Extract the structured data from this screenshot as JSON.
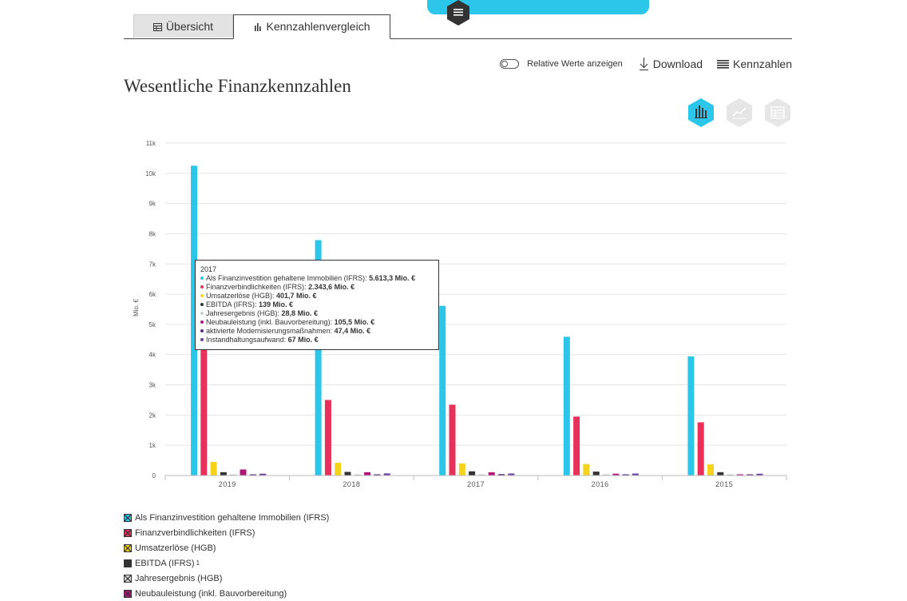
{
  "tabs": [
    {
      "label": "Übersicht",
      "icon": "table-icon"
    },
    {
      "label": "Kennzahlenvergleich",
      "icon": "bar-chart-icon"
    }
  ],
  "toolbar": {
    "relative_label": "Relative Werte anzeigen",
    "download_label": "Download",
    "kennzahlen_label": "Kennzahlen"
  },
  "title": "Wesentliche Finanzkennzahlen",
  "colors": {
    "accent": "#2bc6ea",
    "inactive_hex": "#e6e6e6",
    "menu_hex": "#333333"
  },
  "chart_data": {
    "type": "bar",
    "ylabel": "Mio. €",
    "ylim": [
      0,
      11000
    ],
    "yticks": [
      "0",
      "1k",
      "2k",
      "3k",
      "4k",
      "5k",
      "6k",
      "7k",
      "8k",
      "9k",
      "10k",
      "11k"
    ],
    "categories": [
      "2019",
      "2018",
      "2017",
      "2016",
      "2015"
    ],
    "grid": true,
    "series": [
      {
        "name": "Als Finanzinvestition gehaltene Immobilien (IFRS)",
        "color": "#2bc6ea",
        "values": [
          10250,
          7790,
          5613.3,
          4590,
          3940
        ]
      },
      {
        "name": "Finanzverbindlichkeiten (IFRS)",
        "color": "#e8305a",
        "values": [
          4300,
          2500,
          2343.6,
          1950,
          1760
        ]
      },
      {
        "name": "Umsatzerlöse (HGB)",
        "color": "#f5d31a",
        "values": [
          450,
          420,
          401.7,
          380,
          370
        ]
      },
      {
        "name": "EBITDA (IFRS)",
        "color": "#333333",
        "values": [
          110,
          120,
          139,
          130,
          110
        ]
      },
      {
        "name": "Jahresergebnis (HGB)",
        "color": "#cccccc",
        "values": [
          25,
          25,
          28.8,
          30,
          30
        ]
      },
      {
        "name": "Neubauleistung (inkl. Bauvorbereitung)",
        "color": "#b0147a",
        "values": [
          200,
          110,
          105.5,
          60,
          20
        ]
      },
      {
        "name": "aktivierte Modernisierungsmaßnahmen",
        "color": "#5b2a86",
        "values": [
          20,
          25,
          47.4,
          40,
          30
        ]
      },
      {
        "name": "Instandhaltungsaufwand",
        "color": "#6a3fa0",
        "values": [
          60,
          70,
          67,
          65,
          60
        ]
      }
    ]
  },
  "tooltip": {
    "year": "2017",
    "rows": [
      {
        "label": "Als Finanzinvestition gehaltene Immobilien (IFRS):",
        "value": "5.613,3 Mio. €",
        "color": "#2bc6ea"
      },
      {
        "label": "Finanzverbindlichkeiten (IFRS):",
        "value": "2.343,6 Mio. €",
        "color": "#e8305a"
      },
      {
        "label": "Umsatzerlöse (HGB):",
        "value": "401,7 Mio. €",
        "color": "#f5d31a"
      },
      {
        "label": "EBITDA (IFRS):",
        "value": "139 Mio. €",
        "color": "#333333"
      },
      {
        "label": "Jahresergebnis (HGB):",
        "value": "28,8 Mio. €",
        "color": "#cccccc"
      },
      {
        "label": "Neubauleistung (inkl. Bauvorbereitung):",
        "value": "105,5 Mio. €",
        "color": "#b0147a"
      },
      {
        "label": "aktivierte Modernisierungsmaßnahmen:",
        "value": "47,4 Mio. €",
        "color": "#5b2a86"
      },
      {
        "label": "Instandhaltungsaufwand:",
        "value": "67 Mio. €",
        "color": "#6a3fa0"
      }
    ]
  },
  "legend": [
    {
      "label": "Als Finanzinvestition gehaltene Immobilien (IFRS)",
      "color": "#2bc6ea",
      "sup": ""
    },
    {
      "label": "Finanzverbindlichkeiten (IFRS)",
      "color": "#e8305a",
      "sup": ""
    },
    {
      "label": "Umsatzerlöse (HGB)",
      "color": "#f5d31a",
      "sup": ""
    },
    {
      "label": "EBITDA (IFRS)",
      "color": "#333333",
      "sup": "1"
    },
    {
      "label": "Jahresergebnis (HGB)",
      "color": "#dddddd",
      "sup": ""
    },
    {
      "label": "Neubauleistung (inkl. Bauvorbereitung)",
      "color": "#b0147a",
      "sup": ""
    }
  ]
}
